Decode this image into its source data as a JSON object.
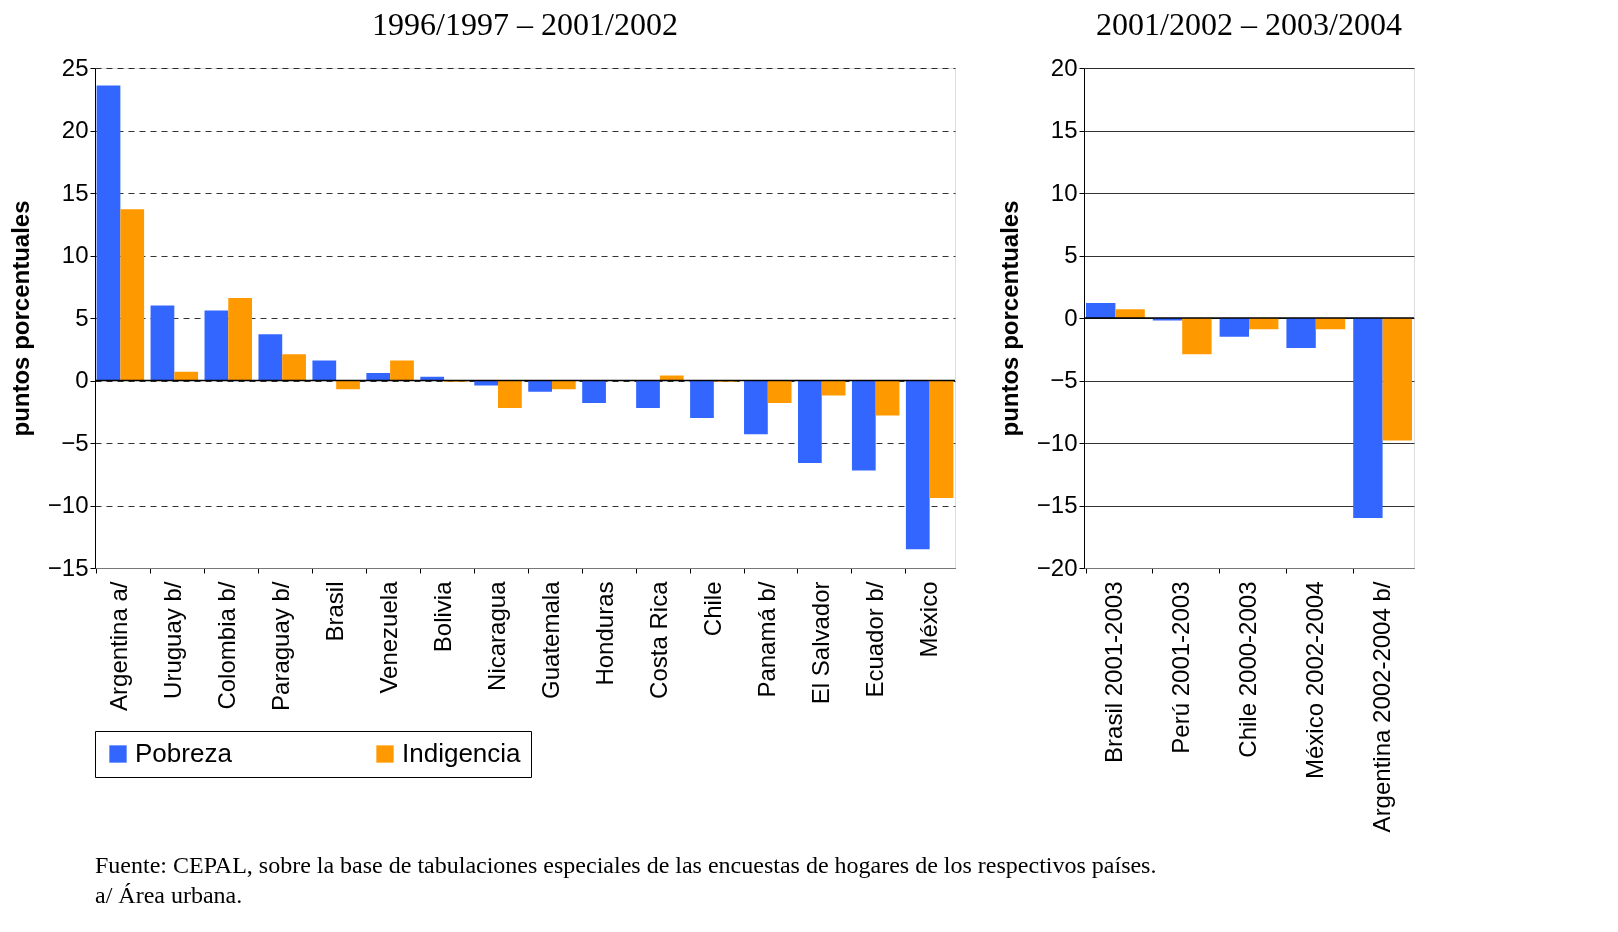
{
  "chart_data": [
    {
      "type": "bar",
      "title": "1996/1997 – 2001/2002",
      "ylabel": "puntos porcentuales",
      "categories": [
        "Argentina a/",
        "Uruguay b/",
        "Colombia b/",
        "Paraguay b/",
        "Brasil",
        "Venezuela",
        "Bolivia",
        "Nicaragua",
        "Guatemala",
        "Honduras",
        "Costa Rica",
        "Chile",
        "Panamá b/",
        "El Salvador",
        "Ecuador b/",
        "México"
      ],
      "series": [
        {
          "name": "Pobreza",
          "color": "#3366ff",
          "values": [
            23.6,
            6.0,
            5.6,
            3.7,
            1.6,
            0.6,
            0.3,
            -0.4,
            -0.9,
            -1.8,
            -2.2,
            -3.0,
            -4.3,
            -6.6,
            -7.2,
            -13.5
          ]
        },
        {
          "name": "Indigencia",
          "color": "#ff9900",
          "values": [
            13.7,
            0.7,
            6.6,
            2.1,
            -0.7,
            1.6,
            -0.1,
            -2.2,
            -0.7,
            0,
            0.4,
            -0.1,
            -1.8,
            -1.2,
            -2.8,
            -9.4
          ]
        }
      ],
      "ylim": [
        -15,
        25
      ],
      "yticks": [
        -15,
        -10,
        -5,
        0,
        5,
        10,
        15,
        20,
        25
      ],
      "grid": "y",
      "legend": "bottom",
      "annotations": [
        "Fuente: CEPAL, sobre la base de tabulaciones especiales de las encuestas de hogares de los respectivos países.",
        "a/ Área urbana."
      ]
    },
    {
      "type": "bar",
      "title": "2001/2002 – 2003/2004",
      "ylabel": "puntos porcentuales",
      "categories": [
        "Brasil  2001-2003",
        "Perú  2001-2003",
        "Chile  2000-2003",
        "México 2002-2004",
        "Argentina 2002-2004 b/"
      ],
      "series": [
        {
          "color": "#3366ff",
          "values": [
            1.2,
            -0.2,
            -1.5,
            -2.4,
            -16.0
          ]
        },
        {
          "color": "#ff9900",
          "values": [
            0.7,
            -2.9,
            -0.9,
            -0.9,
            -9.8
          ]
        }
      ],
      "ylim": [
        -20,
        20
      ],
      "yticks": [
        -20,
        -15,
        -10,
        -5,
        0,
        5,
        10,
        15,
        20
      ],
      "grid": "y",
      "legend": false
    }
  ]
}
